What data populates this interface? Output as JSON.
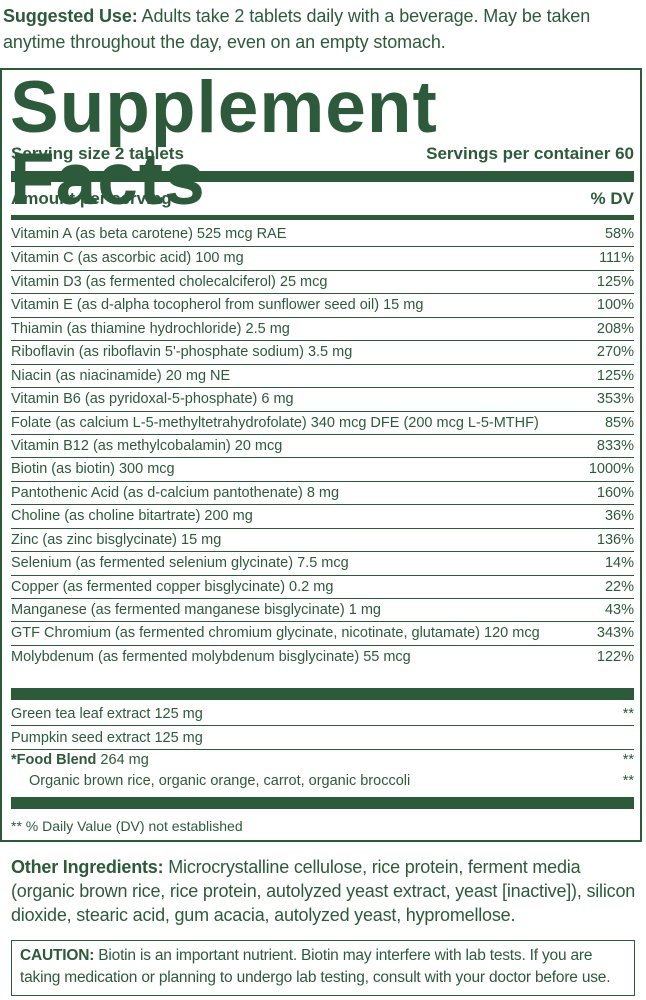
{
  "suggested_use": {
    "label": "Suggested Use:",
    "text": " Adults take 2 tablets daily with a beverage. May be taken anytime throughout the day, even on an empty stomach."
  },
  "facts": {
    "title": "Supplement Facts",
    "serving_size": "Serving size 2 tablets",
    "servings_per_container": "Servings per container 60",
    "amount_header": "Amount per serving",
    "dv_header": "% DV",
    "nutrients": [
      {
        "name": "Vitamin A (as beta carotene) 525 mcg RAE",
        "dv": "58%"
      },
      {
        "name": "Vitamin C (as ascorbic acid) 100 mg",
        "dv": "111%"
      },
      {
        "name": "Vitamin D3 (as fermented cholecalciferol) 25 mcg",
        "dv": "125%"
      },
      {
        "name": "Vitamin E (as d-alpha tocopherol from sunflower seed oil)  15 mg",
        "dv": "100%"
      },
      {
        "name": "Thiamin (as thiamine hydrochloride) 2.5 mg",
        "dv": "208%"
      },
      {
        "name": "Riboflavin (as riboflavin 5'-phosphate sodium) 3.5 mg",
        "dv": "270%"
      },
      {
        "name": "Niacin (as niacinamide) 20 mg NE",
        "dv": "125%"
      },
      {
        "name": "Vitamin B6 (as pyridoxal-5-phosphate) 6 mg",
        "dv": "353%"
      },
      {
        "name": "Folate (as calcium L-5-methyltetrahydrofolate) 340 mcg DFE (200 mcg L-5-MTHF)",
        "dv": "85%"
      },
      {
        "name": "Vitamin B12 (as methylcobalamin) 20 mcg",
        "dv": "833%"
      },
      {
        "name": "Biotin (as biotin) 300 mcg",
        "dv": "1000%"
      },
      {
        "name": "Pantothenic Acid (as d-calcium pantothenate) 8 mg",
        "dv": "160%"
      },
      {
        "name": "Choline (as choline bitartrate) 200 mg",
        "dv": "36%"
      },
      {
        "name": "Zinc (as zinc bisglycinate) 15 mg",
        "dv": "136%"
      },
      {
        "name": "Selenium (as fermented selenium glycinate) 7.5 mcg",
        "dv": "14%"
      },
      {
        "name": "Copper (as fermented copper bisglycinate) 0.2 mg",
        "dv": "22%"
      },
      {
        "name": "Manganese (as fermented manganese bisglycinate) 1 mg",
        "dv": "43%"
      },
      {
        "name": "GTF Chromium (as fermented chromium glycinate, nicotinate, glutamate) 120 mcg",
        "dv": "343%"
      },
      {
        "name": "Molybdenum (as fermented molybdenum bisglycinate) 55 mcg",
        "dv": "122%"
      }
    ],
    "others": [
      {
        "name": "Green tea leaf extract 125 mg",
        "dv": "**"
      },
      {
        "name": "Pumpkin seed extract 125 mg",
        "dv": ""
      }
    ],
    "blend": {
      "star": "*",
      "label": "Food Blend",
      "amount": " 264 mg",
      "dv": "**",
      "ingredients": "Organic brown rice, organic orange, carrot, organic broccoli",
      "ingredients_dv": "**"
    },
    "footnote": "** % Daily Value (DV) not established"
  },
  "other_ingredients": {
    "label": "Other Ingredients:",
    "text": " Microcrystalline cellulose, rice protein, ferment media (organic brown rice, rice protein, autolyzed yeast extract, yeast [inactive]), silicon dioxide, stearic acid, gum acacia, autolyzed yeast, hypromellose."
  },
  "caution": {
    "label": "CAUTION:",
    "text": " Biotin is an important nutrient. Biotin may interfere with lab tests. If you are taking medication or planning to undergo lab testing, consult with your doctor before use."
  }
}
